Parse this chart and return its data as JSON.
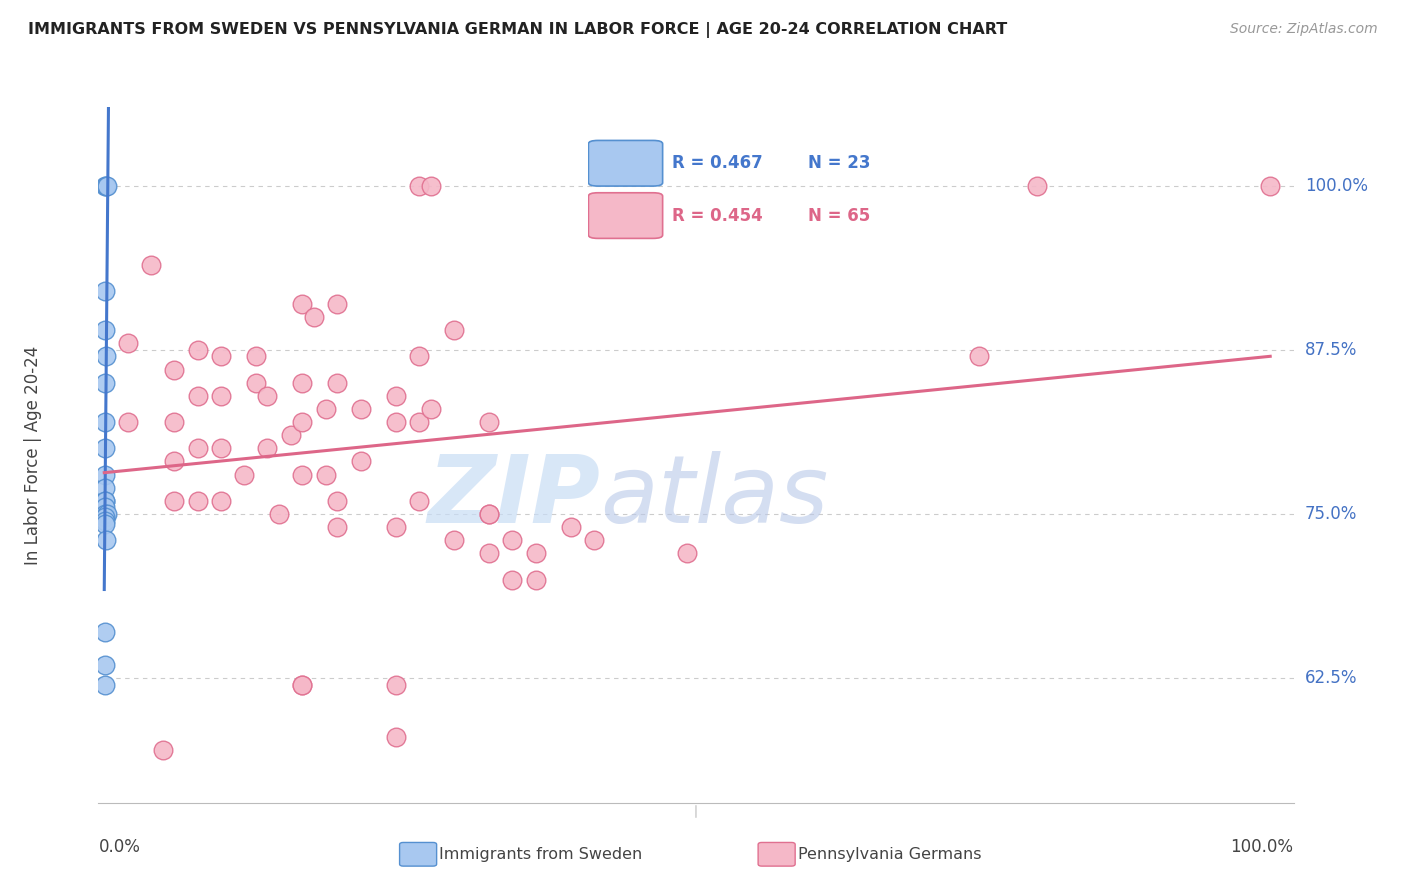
{
  "title": "IMMIGRANTS FROM SWEDEN VS PENNSYLVANIA GERMAN IN LABOR FORCE | AGE 20-24 CORRELATION CHART",
  "source": "Source: ZipAtlas.com",
  "ylabel": "In Labor Force | Age 20-24",
  "legend_label1": "Immigrants from Sweden",
  "legend_label2": "Pennsylvania Germans",
  "legend_R1": "R = 0.467",
  "legend_N1": "N = 23",
  "legend_R2": "R = 0.454",
  "legend_N2": "N = 65",
  "watermark_zip": "ZIP",
  "watermark_atlas": "atlas",
  "right_ytick_labels": [
    "100.0%",
    "87.5%",
    "75.0%",
    "62.5%"
  ],
  "right_ytick_values": [
    1.0,
    0.875,
    0.75,
    0.625
  ],
  "color_blue_fill": "#a8c8f0",
  "color_blue_edge": "#5590d0",
  "color_blue_line": "#4477cc",
  "color_pink_fill": "#f5b8c8",
  "color_pink_edge": "#e07090",
  "color_pink_line": "#dd6688",
  "color_right_label": "#4472c4",
  "color_watermark_zip": "#c8ddf5",
  "color_watermark_atlas": "#b8c8e8",
  "background": "#ffffff",
  "blue_x": [
    0.0008,
    0.0015,
    0.002,
    0.0008,
    0.001,
    0.0012,
    0.0008,
    0.001,
    0.0008,
    0.001,
    0.0008,
    0.001,
    0.0008,
    0.001,
    0.0008,
    0.002,
    0.001,
    0.0008,
    0.001,
    0.0012,
    0.0008,
    0.0008,
    0.001
  ],
  "blue_y": [
    1.0,
    1.0,
    1.0,
    0.92,
    0.89,
    0.87,
    0.85,
    0.82,
    0.8,
    0.78,
    0.77,
    0.76,
    0.76,
    0.755,
    0.75,
    0.75,
    0.748,
    0.745,
    0.742,
    0.73,
    0.66,
    0.635,
    0.62
  ],
  "pink_x": [
    0.02,
    0.02,
    0.04,
    0.05,
    0.06,
    0.06,
    0.06,
    0.06,
    0.08,
    0.08,
    0.08,
    0.08,
    0.1,
    0.1,
    0.1,
    0.1,
    0.12,
    0.13,
    0.13,
    0.14,
    0.14,
    0.15,
    0.16,
    0.17,
    0.17,
    0.17,
    0.17,
    0.18,
    0.19,
    0.19,
    0.2,
    0.2,
    0.2,
    0.2,
    0.22,
    0.22,
    0.25,
    0.25,
    0.25,
    0.27,
    0.27,
    0.27,
    0.27,
    0.28,
    0.28,
    0.3,
    0.3,
    0.33,
    0.33,
    0.35,
    0.35,
    0.37,
    0.37,
    0.4,
    0.42,
    0.5,
    0.75,
    0.8,
    1.0,
    0.17,
    0.17,
    0.25,
    0.25,
    0.33,
    0.33
  ],
  "pink_y": [
    0.88,
    0.82,
    0.94,
    0.57,
    0.86,
    0.82,
    0.79,
    0.76,
    0.875,
    0.84,
    0.8,
    0.76,
    0.87,
    0.84,
    0.8,
    0.76,
    0.78,
    0.87,
    0.85,
    0.84,
    0.8,
    0.75,
    0.81,
    0.91,
    0.85,
    0.82,
    0.78,
    0.9,
    0.83,
    0.78,
    0.91,
    0.85,
    0.76,
    0.74,
    0.83,
    0.79,
    0.84,
    0.82,
    0.74,
    1.0,
    0.87,
    0.82,
    0.76,
    1.0,
    0.83,
    0.89,
    0.73,
    0.82,
    0.75,
    0.73,
    0.7,
    0.7,
    0.72,
    0.74,
    0.73,
    0.72,
    0.87,
    1.0,
    1.0,
    0.62,
    0.62,
    0.62,
    0.58,
    0.72,
    0.75
  ],
  "xlim": [
    0.0,
    1.0
  ],
  "ylim": [
    0.53,
    1.06
  ],
  "blue_line_x": [
    0.0,
    0.013
  ],
  "pink_line_x": [
    0.0,
    1.0
  ]
}
